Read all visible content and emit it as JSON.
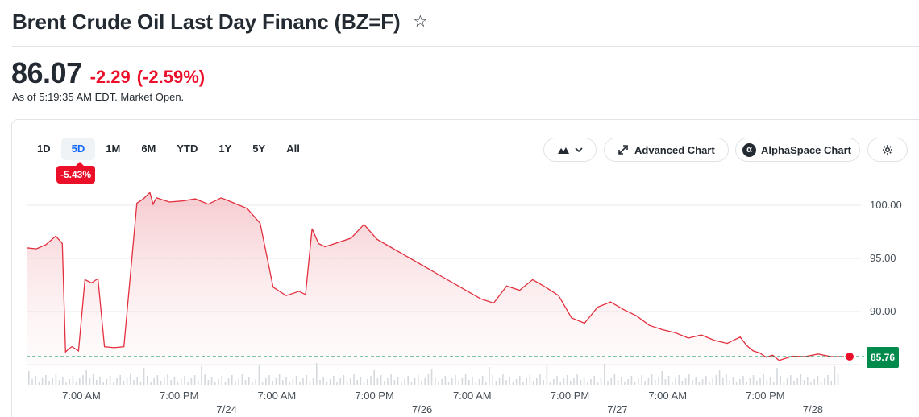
{
  "header": {
    "title": "Brent Crude Oil Last Day Financ (BZ=F)",
    "star_icon": "star-outline-icon"
  },
  "quote": {
    "price": "86.07",
    "change": "-2.29",
    "change_pct": "(-2.59%)",
    "as_of": "As of 5:19:35 AM EDT. Market Open.",
    "change_color": "#eb0f29"
  },
  "toolbar": {
    "ranges": [
      "1D",
      "5D",
      "1M",
      "6M",
      "YTD",
      "1Y",
      "5Y",
      "All"
    ],
    "active_range": "5D",
    "range_change_badge": "-5.43%",
    "chart_type_icon": "mountain-chart-icon",
    "advanced_chart_label": "Advanced Chart",
    "alphaspace_chart_label": "AlphaSpace Chart",
    "settings_icon": "gear-icon"
  },
  "chart_data": {
    "type": "area",
    "y_tick_labels": [
      "100.00",
      "95.00",
      "90.00"
    ],
    "ylim": [
      84.8,
      101.2
    ],
    "x_tick_labels": [
      {
        "time": "7:00 AM",
        "date": ""
      },
      {
        "time": "7:00 PM",
        "date": "7/24"
      },
      {
        "time": "7:00 AM",
        "date": ""
      },
      {
        "time": "7:00 PM",
        "date": "7/26"
      },
      {
        "time": "7:00 AM",
        "date": ""
      },
      {
        "time": "7:00 PM",
        "date": "7/27"
      },
      {
        "time": "7:00 AM",
        "date": ""
      },
      {
        "time": "7:00 PM",
        "date": "7/28"
      }
    ],
    "reference_line": {
      "value": 85.76,
      "label": "85.76",
      "color": "#008a4c",
      "style": "dashed"
    },
    "line_color": "#e32f3e",
    "fill_color": "#f5c6cb",
    "grid": true,
    "series": [
      {
        "x_hours": [
          0,
          3,
          6,
          9,
          11,
          12,
          13,
          14,
          16,
          18,
          20,
          22,
          24,
          27,
          30,
          34,
          36,
          38,
          39,
          40,
          44,
          48,
          52,
          56,
          60,
          64,
          68,
          72,
          76,
          80,
          84,
          86,
          88,
          89,
          90,
          92,
          96,
          100,
          104,
          108,
          112,
          116,
          120,
          124,
          128,
          132,
          136,
          140,
          144,
          148,
          152,
          156,
          160,
          164,
          168,
          172,
          176,
          180,
          184,
          188,
          192,
          196,
          200,
          204,
          208,
          212,
          216,
          220,
          222,
          224,
          226,
          228,
          230,
          232,
          236,
          240,
          244,
          248,
          252
        ],
        "values": [
          96.0,
          95.9,
          96.3,
          97.1,
          96.4,
          86.2,
          86.5,
          86.7,
          86.3,
          93.0,
          92.7,
          93.1,
          86.7,
          86.6,
          86.7,
          100.2,
          100.6,
          101.2,
          100.1,
          100.7,
          100.3,
          100.4,
          100.6,
          100.1,
          100.7,
          100.2,
          99.7,
          98.3,
          92.3,
          91.5,
          91.9,
          91.6,
          97.8,
          97.1,
          96.4,
          96.1,
          96.5,
          96.9,
          98.2,
          96.8,
          96.1,
          95.4,
          94.7,
          94.0,
          93.3,
          92.6,
          91.9,
          91.2,
          90.8,
          92.4,
          92.0,
          93.0,
          92.3,
          91.5,
          89.4,
          88.9,
          90.4,
          90.9,
          90.2,
          89.6,
          88.7,
          88.3,
          88.0,
          87.5,
          87.8,
          87.3,
          87.0,
          87.6,
          86.8,
          86.3,
          86.1,
          85.7,
          85.9,
          85.4,
          85.8,
          85.76,
          86.0,
          85.76,
          85.76
        ]
      }
    ]
  }
}
